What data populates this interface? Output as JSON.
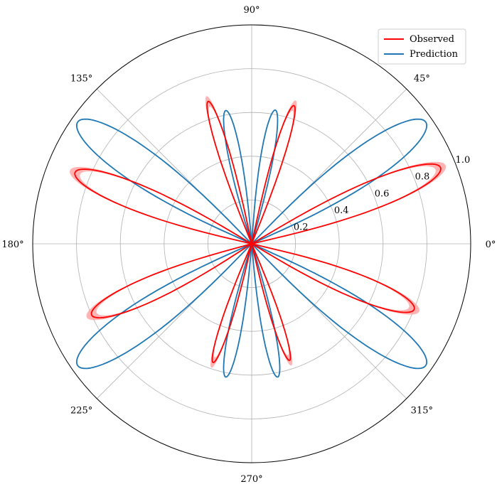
{
  "chart_data": {
    "type": "line",
    "projection": "polar",
    "title": "",
    "rlim": [
      0,
      1.0
    ],
    "r_ticks": [
      0.2,
      0.4,
      0.6,
      0.8,
      1.0
    ],
    "r_tick_labels": [
      "0.2",
      "0.4",
      "0.6",
      "0.8",
      "1.0"
    ],
    "theta_ticks_deg": [
      0,
      45,
      90,
      135,
      180,
      225,
      270,
      315
    ],
    "theta_tick_labels": [
      "0°",
      "45°",
      "90°",
      "135°",
      "180°",
      "225°",
      "270°",
      "315°"
    ],
    "grid": true,
    "legend": {
      "placement": "top-right",
      "entries": [
        {
          "label": "Observed",
          "color": "#ff0000"
        },
        {
          "label": "Prediction",
          "color": "#1f77b4"
        }
      ]
    },
    "series": [
      {
        "name": "Observed",
        "color": "#ff0000",
        "band_color": "#ff9999",
        "band_halfwidth": 0.025,
        "lobes": [
          {
            "center_deg": 22,
            "peak_r": 0.93,
            "halfwidth_deg": 9
          },
          {
            "center_deg": 73,
            "peak_r": 0.66,
            "halfwidth_deg": 5
          },
          {
            "center_deg": 107,
            "peak_r": 0.68,
            "halfwidth_deg": 5
          },
          {
            "center_deg": 158,
            "peak_r": 0.87,
            "halfwidth_deg": 9
          },
          {
            "center_deg": 204,
            "peak_r": 0.8,
            "halfwidth_deg": 9
          },
          {
            "center_deg": 252,
            "peak_r": 0.57,
            "halfwidth_deg": 5
          },
          {
            "center_deg": 288,
            "peak_r": 0.56,
            "halfwidth_deg": 5
          },
          {
            "center_deg": 338,
            "peak_r": 0.8,
            "halfwidth_deg": 9
          }
        ]
      },
      {
        "name": "Prediction",
        "color": "#1f77b4",
        "lobes": [
          {
            "center_deg": 35,
            "peak_r": 0.97,
            "halfwidth_deg": 11
          },
          {
            "center_deg": 80,
            "peak_r": 0.62,
            "halfwidth_deg": 6
          },
          {
            "center_deg": 101,
            "peak_r": 0.62,
            "halfwidth_deg": 6
          },
          {
            "center_deg": 145,
            "peak_r": 0.97,
            "halfwidth_deg": 11
          },
          {
            "center_deg": 215,
            "peak_r": 0.97,
            "halfwidth_deg": 11
          },
          {
            "center_deg": 259,
            "peak_r": 0.62,
            "halfwidth_deg": 6
          },
          {
            "center_deg": 281,
            "peak_r": 0.62,
            "halfwidth_deg": 6
          },
          {
            "center_deg": 325,
            "peak_r": 0.97,
            "halfwidth_deg": 11
          }
        ]
      }
    ]
  }
}
